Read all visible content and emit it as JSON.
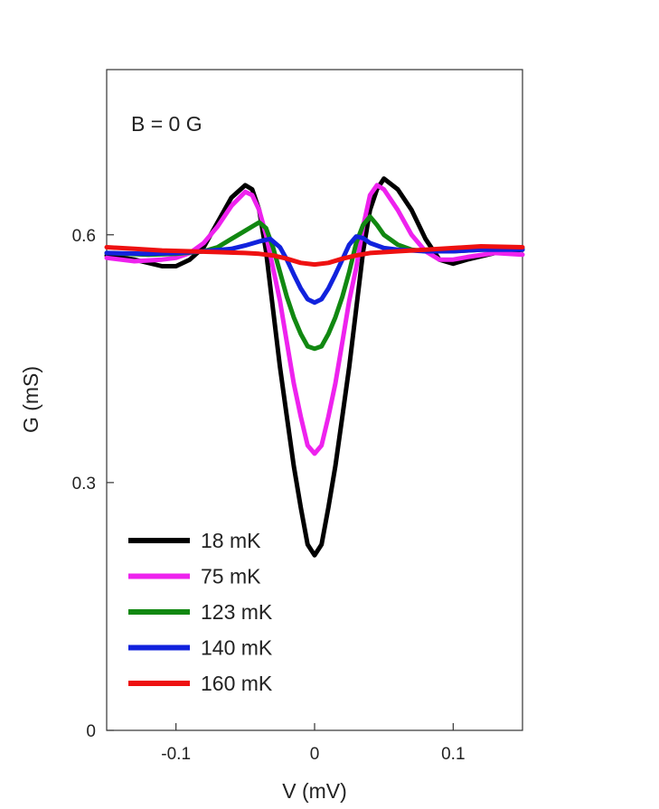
{
  "chart_data": {
    "type": "line",
    "annotation": "B = 0 G",
    "xlabel": "V (mV)",
    "ylabel": "G (mS)",
    "xlim": [
      -0.15,
      0.15
    ],
    "ylim": [
      0,
      0.8
    ],
    "x_ticks": [
      {
        "value": -0.1,
        "label": "-0.1"
      },
      {
        "value": 0,
        "label": "0"
      },
      {
        "value": 0.1,
        "label": "0.1"
      }
    ],
    "y_ticks": [
      {
        "value": 0,
        "label": "0"
      },
      {
        "value": 0.3,
        "label": "0.3"
      },
      {
        "value": 0.6,
        "label": "0.6"
      }
    ],
    "grid": false,
    "legend_position": "bottom-left",
    "series": [
      {
        "name": "18 mK",
        "color": "#000000",
        "points": [
          [
            -0.15,
            0.575
          ],
          [
            -0.13,
            0.57
          ],
          [
            -0.11,
            0.562
          ],
          [
            -0.1,
            0.562
          ],
          [
            -0.09,
            0.57
          ],
          [
            -0.08,
            0.585
          ],
          [
            -0.07,
            0.615
          ],
          [
            -0.06,
            0.645
          ],
          [
            -0.05,
            0.66
          ],
          [
            -0.045,
            0.655
          ],
          [
            -0.04,
            0.63
          ],
          [
            -0.035,
            0.58
          ],
          [
            -0.03,
            0.51
          ],
          [
            -0.025,
            0.44
          ],
          [
            -0.02,
            0.38
          ],
          [
            -0.015,
            0.32
          ],
          [
            -0.01,
            0.27
          ],
          [
            -0.005,
            0.225
          ],
          [
            0,
            0.212
          ],
          [
            0.005,
            0.225
          ],
          [
            0.01,
            0.27
          ],
          [
            0.015,
            0.32
          ],
          [
            0.02,
            0.38
          ],
          [
            0.025,
            0.44
          ],
          [
            0.03,
            0.51
          ],
          [
            0.035,
            0.58
          ],
          [
            0.04,
            0.63
          ],
          [
            0.045,
            0.655
          ],
          [
            0.05,
            0.668
          ],
          [
            0.06,
            0.655
          ],
          [
            0.07,
            0.63
          ],
          [
            0.08,
            0.595
          ],
          [
            0.09,
            0.57
          ],
          [
            0.1,
            0.565
          ],
          [
            0.11,
            0.57
          ],
          [
            0.13,
            0.578
          ],
          [
            0.15,
            0.582
          ]
        ]
      },
      {
        "name": "75 mK",
        "color": "#ee22ee",
        "points": [
          [
            -0.15,
            0.572
          ],
          [
            -0.13,
            0.568
          ],
          [
            -0.11,
            0.57
          ],
          [
            -0.1,
            0.572
          ],
          [
            -0.09,
            0.578
          ],
          [
            -0.08,
            0.59
          ],
          [
            -0.07,
            0.61
          ],
          [
            -0.06,
            0.635
          ],
          [
            -0.05,
            0.652
          ],
          [
            -0.045,
            0.648
          ],
          [
            -0.04,
            0.63
          ],
          [
            -0.035,
            0.6
          ],
          [
            -0.03,
            0.56
          ],
          [
            -0.025,
            0.52
          ],
          [
            -0.02,
            0.47
          ],
          [
            -0.015,
            0.42
          ],
          [
            -0.01,
            0.38
          ],
          [
            -0.005,
            0.345
          ],
          [
            0,
            0.335
          ],
          [
            0.005,
            0.345
          ],
          [
            0.01,
            0.38
          ],
          [
            0.015,
            0.42
          ],
          [
            0.02,
            0.47
          ],
          [
            0.025,
            0.52
          ],
          [
            0.03,
            0.56
          ],
          [
            0.035,
            0.61
          ],
          [
            0.04,
            0.648
          ],
          [
            0.045,
            0.66
          ],
          [
            0.05,
            0.655
          ],
          [
            0.06,
            0.63
          ],
          [
            0.07,
            0.6
          ],
          [
            0.08,
            0.58
          ],
          [
            0.09,
            0.57
          ],
          [
            0.1,
            0.57
          ],
          [
            0.11,
            0.573
          ],
          [
            0.13,
            0.578
          ],
          [
            0.15,
            0.576
          ]
        ]
      },
      {
        "name": "123 mK",
        "color": "#118811",
        "points": [
          [
            -0.15,
            0.578
          ],
          [
            -0.12,
            0.576
          ],
          [
            -0.1,
            0.577
          ],
          [
            -0.08,
            0.58
          ],
          [
            -0.07,
            0.585
          ],
          [
            -0.06,
            0.595
          ],
          [
            -0.05,
            0.605
          ],
          [
            -0.04,
            0.615
          ],
          [
            -0.035,
            0.608
          ],
          [
            -0.03,
            0.585
          ],
          [
            -0.025,
            0.555
          ],
          [
            -0.02,
            0.525
          ],
          [
            -0.015,
            0.5
          ],
          [
            -0.01,
            0.48
          ],
          [
            -0.005,
            0.465
          ],
          [
            0,
            0.462
          ],
          [
            0.005,
            0.465
          ],
          [
            0.01,
            0.48
          ],
          [
            0.015,
            0.5
          ],
          [
            0.02,
            0.525
          ],
          [
            0.025,
            0.555
          ],
          [
            0.03,
            0.59
          ],
          [
            0.035,
            0.612
          ],
          [
            0.04,
            0.622
          ],
          [
            0.045,
            0.612
          ],
          [
            0.05,
            0.6
          ],
          [
            0.06,
            0.588
          ],
          [
            0.07,
            0.582
          ],
          [
            0.08,
            0.58
          ],
          [
            0.1,
            0.58
          ],
          [
            0.12,
            0.582
          ],
          [
            0.15,
            0.583
          ]
        ]
      },
      {
        "name": "140 mK",
        "color": "#1122dd",
        "points": [
          [
            -0.15,
            0.578
          ],
          [
            -0.12,
            0.577
          ],
          [
            -0.1,
            0.578
          ],
          [
            -0.08,
            0.58
          ],
          [
            -0.06,
            0.583
          ],
          [
            -0.05,
            0.587
          ],
          [
            -0.04,
            0.592
          ],
          [
            -0.032,
            0.595
          ],
          [
            -0.025,
            0.585
          ],
          [
            -0.02,
            0.57
          ],
          [
            -0.015,
            0.552
          ],
          [
            -0.01,
            0.535
          ],
          [
            -0.005,
            0.522
          ],
          [
            0,
            0.518
          ],
          [
            0.005,
            0.522
          ],
          [
            0.01,
            0.535
          ],
          [
            0.015,
            0.552
          ],
          [
            0.02,
            0.57
          ],
          [
            0.025,
            0.588
          ],
          [
            0.03,
            0.598
          ],
          [
            0.035,
            0.596
          ],
          [
            0.04,
            0.59
          ],
          [
            0.05,
            0.584
          ],
          [
            0.06,
            0.582
          ],
          [
            0.08,
            0.58
          ],
          [
            0.1,
            0.58
          ],
          [
            0.12,
            0.582
          ],
          [
            0.15,
            0.582
          ]
        ]
      },
      {
        "name": "160 mK",
        "color": "#ee1111",
        "points": [
          [
            -0.15,
            0.585
          ],
          [
            -0.13,
            0.583
          ],
          [
            -0.11,
            0.581
          ],
          [
            -0.09,
            0.58
          ],
          [
            -0.07,
            0.579
          ],
          [
            -0.05,
            0.578
          ],
          [
            -0.04,
            0.577
          ],
          [
            -0.03,
            0.575
          ],
          [
            -0.02,
            0.571
          ],
          [
            -0.01,
            0.566
          ],
          [
            0,
            0.564
          ],
          [
            0.01,
            0.566
          ],
          [
            0.02,
            0.571
          ],
          [
            0.03,
            0.575
          ],
          [
            0.04,
            0.578
          ],
          [
            0.06,
            0.58
          ],
          [
            0.08,
            0.582
          ],
          [
            0.1,
            0.584
          ],
          [
            0.12,
            0.586
          ],
          [
            0.15,
            0.585
          ]
        ]
      }
    ]
  }
}
